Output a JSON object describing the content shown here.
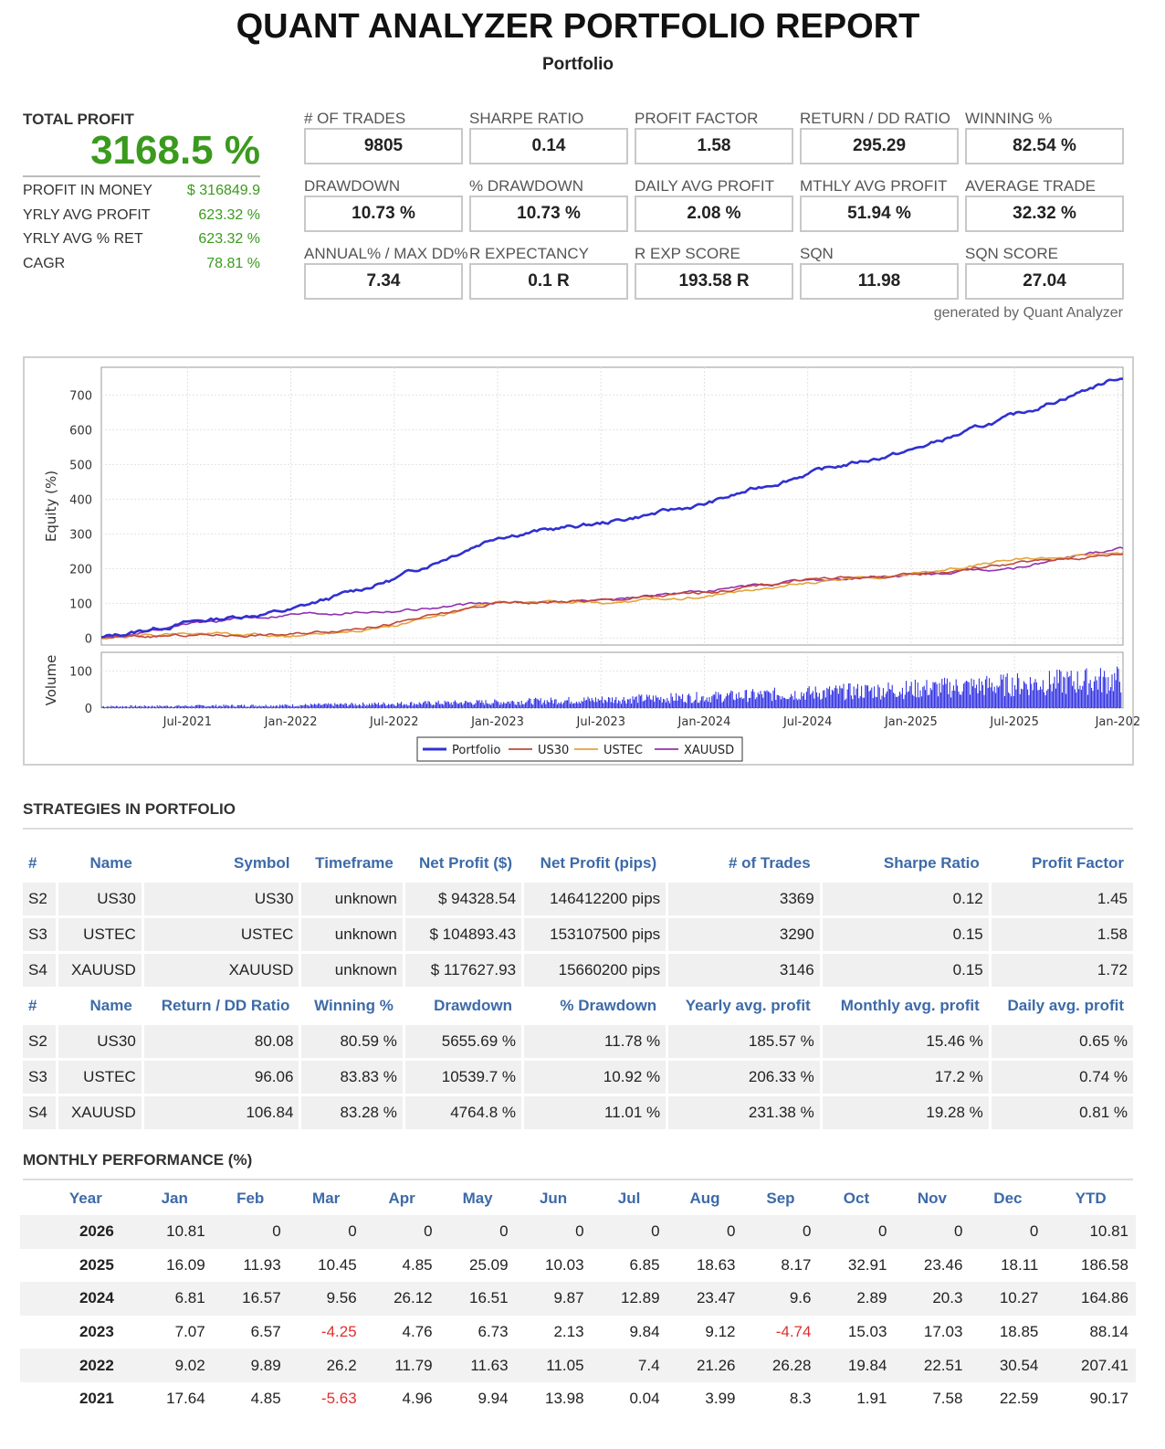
{
  "report": {
    "title": "QUANT ANALYZER PORTFOLIO REPORT",
    "subtitle": "Portfolio",
    "generated_by": "generated by Quant Analyzer"
  },
  "summary": {
    "total_profit_label": "TOTAL PROFIT",
    "total_profit_value": "3168.5 %",
    "rows": [
      {
        "label": "PROFIT IN MONEY",
        "value": "$ 316849.9"
      },
      {
        "label": "YRLY AVG PROFIT",
        "value": "623.32 %"
      },
      {
        "label": "YRLY AVG % RET",
        "value": "623.32 %"
      },
      {
        "label": "CAGR",
        "value": "78.81 %"
      }
    ]
  },
  "metrics": [
    {
      "label": "# OF TRADES",
      "value": "9805"
    },
    {
      "label": "SHARPE RATIO",
      "value": "0.14"
    },
    {
      "label": "PROFIT FACTOR",
      "value": "1.58"
    },
    {
      "label": "RETURN / DD RATIO",
      "value": "295.29"
    },
    {
      "label": "WINNING %",
      "value": "82.54 %"
    },
    {
      "label": "DRAWDOWN",
      "value": "10.73 %"
    },
    {
      "label": "% DRAWDOWN",
      "value": "10.73 %"
    },
    {
      "label": "DAILY AVG PROFIT",
      "value": "2.08 %"
    },
    {
      "label": "MTHLY AVG PROFIT",
      "value": "51.94 %"
    },
    {
      "label": "AVERAGE TRADE",
      "value": "32.32 %"
    },
    {
      "label": "ANNUAL% / MAX DD%",
      "value": "7.34"
    },
    {
      "label": "R EXPECTANCY",
      "value": "0.1 R"
    },
    {
      "label": "R EXP SCORE",
      "value": "193.58 R"
    },
    {
      "label": "SQN",
      "value": "11.98"
    },
    {
      "label": "SQN SCORE",
      "value": "27.04"
    }
  ],
  "chart_data": {
    "type": "line",
    "ylabel": "Equity (%)",
    "ylabel2": "Volume",
    "x_ticks": [
      "Jul-2021",
      "Jan-2022",
      "Jul-2022",
      "Jan-2023",
      "Jul-2023",
      "Jan-2024",
      "Jul-2024",
      "Jan-2025",
      "Jul-2025",
      "Jan-202"
    ],
    "x": [
      "2021-02",
      "2021-07",
      "2022-01",
      "2022-07",
      "2023-01",
      "2023-07",
      "2024-01",
      "2024-07",
      "2025-01",
      "2025-07",
      "2026-01"
    ],
    "ylim": [
      -20,
      780
    ],
    "y_ticks": [
      0,
      100,
      200,
      300,
      400,
      500,
      600,
      700
    ],
    "volume_ylim": [
      0,
      150
    ],
    "volume_ticks": [
      0,
      100
    ],
    "series": [
      {
        "name": "Portfolio",
        "color": "#3030d0",
        "values": [
          0,
          45,
          80,
          170,
          295,
          330,
          385,
          475,
          540,
          640,
          750
        ]
      },
      {
        "name": "US30",
        "color": "#c0483a",
        "values": [
          0,
          8,
          10,
          42,
          100,
          108,
          130,
          170,
          180,
          215,
          242
        ]
      },
      {
        "name": "USTEC",
        "color": "#e3a33a",
        "values": [
          0,
          15,
          5,
          35,
          100,
          100,
          120,
          160,
          185,
          225,
          245
        ]
      },
      {
        "name": "XAUUSD",
        "color": "#9030b0",
        "values": [
          0,
          40,
          70,
          80,
          100,
          110,
          135,
          165,
          180,
          200,
          260
        ]
      }
    ],
    "volume": {
      "x": [
        "2021-02",
        "2022-01",
        "2023-01",
        "2024-01",
        "2025-01",
        "2026-01"
      ],
      "values": [
        6,
        10,
        22,
        40,
        70,
        105
      ]
    },
    "legend": "bottom-center",
    "grid": true
  },
  "strategies": {
    "section_title": "STRATEGIES IN PORTFOLIO",
    "headers1": [
      "#",
      "Name",
      "Symbol",
      "Timeframe",
      "Net Profit ($)",
      "Net Profit (pips)",
      "# of Trades",
      "Sharpe Ratio",
      "Profit Factor"
    ],
    "rows1": [
      [
        "S2",
        "US30",
        "US30",
        "unknown",
        "$ 94328.54",
        "146412200 pips",
        "3369",
        "0.12",
        "1.45"
      ],
      [
        "S3",
        "USTEC",
        "USTEC",
        "unknown",
        "$ 104893.43",
        "153107500 pips",
        "3290",
        "0.15",
        "1.58"
      ],
      [
        "S4",
        "XAUUSD",
        "XAUUSD",
        "unknown",
        "$ 117627.93",
        "15660200 pips",
        "3146",
        "0.15",
        "1.72"
      ]
    ],
    "headers2": [
      "#",
      "Name",
      "Return / DD Ratio",
      "Winning %",
      "Drawdown",
      "% Drawdown",
      "Yearly avg. profit",
      "Monthly avg. profit",
      "Daily avg. profit"
    ],
    "rows2": [
      [
        "S2",
        "US30",
        "80.08",
        "80.59 %",
        "5655.69 %",
        "11.78 %",
        "185.57 %",
        "15.46 %",
        "0.65 %"
      ],
      [
        "S3",
        "USTEC",
        "96.06",
        "83.83 %",
        "10539.7 %",
        "10.92 %",
        "206.33 %",
        "17.2 %",
        "0.74 %"
      ],
      [
        "S4",
        "XAUUSD",
        "106.84",
        "83.28 %",
        "4764.8 %",
        "11.01 %",
        "231.38 %",
        "19.28 %",
        "0.81 %"
      ]
    ]
  },
  "monthly": {
    "section_title": "MONTHLY PERFORMANCE (%)",
    "headers": [
      "Year",
      "Jan",
      "Feb",
      "Mar",
      "Apr",
      "May",
      "Jun",
      "Jul",
      "Aug",
      "Sep",
      "Oct",
      "Nov",
      "Dec",
      "YTD"
    ],
    "rows": [
      [
        "2026",
        "10.81",
        "0",
        "0",
        "0",
        "0",
        "0",
        "0",
        "0",
        "0",
        "0",
        "0",
        "0",
        "10.81"
      ],
      [
        "2025",
        "16.09",
        "11.93",
        "10.45",
        "4.85",
        "25.09",
        "10.03",
        "6.85",
        "18.63",
        "8.17",
        "32.91",
        "23.46",
        "18.11",
        "186.58"
      ],
      [
        "2024",
        "6.81",
        "16.57",
        "9.56",
        "26.12",
        "16.51",
        "9.87",
        "12.89",
        "23.47",
        "9.6",
        "2.89",
        "20.3",
        "10.27",
        "164.86"
      ],
      [
        "2023",
        "7.07",
        "6.57",
        "-4.25",
        "4.76",
        "6.73",
        "2.13",
        "9.84",
        "9.12",
        "-4.74",
        "15.03",
        "17.03",
        "18.85",
        "88.14"
      ],
      [
        "2022",
        "9.02",
        "9.89",
        "26.2",
        "11.79",
        "11.63",
        "11.05",
        "7.4",
        "21.26",
        "26.28",
        "19.84",
        "22.51",
        "30.54",
        "207.41"
      ],
      [
        "2021",
        "17.64",
        "4.85",
        "-5.63",
        "4.96",
        "9.94",
        "13.98",
        "0.04",
        "3.99",
        "8.3",
        "1.91",
        "7.58",
        "22.59",
        "90.17"
      ]
    ],
    "negative_color": "#e03030"
  }
}
